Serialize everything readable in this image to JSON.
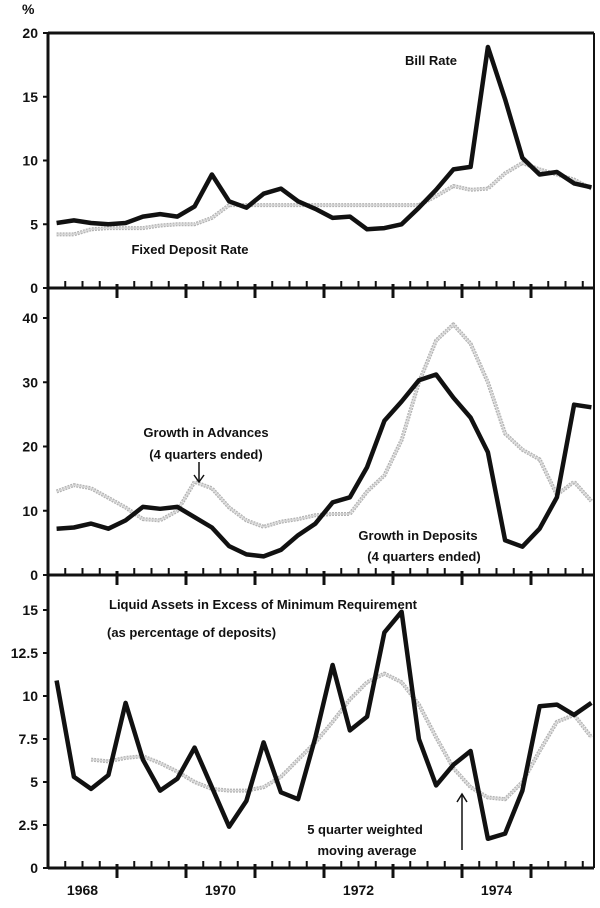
{
  "chart_data": [
    {
      "type": "line",
      "title": "",
      "ylabel": "%",
      "ylim": [
        0,
        20
      ],
      "yticks": [
        "0",
        "5",
        "10",
        "15",
        "20"
      ],
      "ytick_values": [
        0,
        5,
        10,
        15,
        20
      ],
      "x_start": 1968.125,
      "x_step": 0.25,
      "annotations": {
        "bill": "Bill Rate",
        "fixed": "Fixed Deposit Rate"
      },
      "series": [
        {
          "name": "Bill Rate",
          "style": "black",
          "values": [
            5.1,
            5.3,
            5.1,
            5.0,
            5.1,
            5.6,
            5.8,
            5.6,
            6.4,
            8.9,
            6.8,
            6.3,
            7.4,
            7.8,
            6.8,
            6.2,
            5.5,
            5.6,
            4.6,
            4.7,
            5.0,
            6.3,
            7.7,
            9.3,
            9.5,
            18.9,
            14.8,
            10.2,
            8.9,
            9.1,
            8.2,
            7.9
          ]
        },
        {
          "name": "Fixed Deposit Rate",
          "style": "grey",
          "values": [
            4.2,
            4.2,
            4.6,
            4.7,
            4.7,
            4.7,
            4.9,
            5.0,
            5.0,
            5.5,
            6.5,
            6.5,
            6.5,
            6.5,
            6.5,
            6.5,
            6.5,
            6.5,
            6.5,
            6.5,
            6.5,
            6.5,
            7.2,
            8.0,
            7.7,
            7.8,
            9.0,
            9.8,
            9.3,
            8.9,
            8.5,
            7.8
          ]
        }
      ]
    },
    {
      "type": "line",
      "ylim": [
        0,
        40
      ],
      "yticks": [
        "0",
        "10",
        "20",
        "30",
        "40"
      ],
      "ytick_values": [
        0,
        10,
        20,
        30,
        40
      ],
      "x_start": 1968.125,
      "x_step": 0.25,
      "annotations": {
        "adv1": "Growth in Advances",
        "adv2": "(4 quarters ended)",
        "dep1": "Growth in Deposits",
        "dep2": "(4 quarters ended)"
      },
      "series": [
        {
          "name": "Growth in Deposits (4 quarters ended)",
          "style": "black",
          "values": [
            7.2,
            7.4,
            8.0,
            7.2,
            8.5,
            10.6,
            10.3,
            10.6,
            9.0,
            7.4,
            4.5,
            3.2,
            2.9,
            3.9,
            6.2,
            8.0,
            11.3,
            12.1,
            16.8,
            24.0,
            27.0,
            30.3,
            31.2,
            27.6,
            24.5,
            19.1,
            5.4,
            4.4,
            7.2,
            12.1,
            26.5,
            26.1
          ]
        },
        {
          "name": "Growth in Advances (4 quarters ended)",
          "style": "grey",
          "values": [
            13.0,
            14.0,
            13.5,
            12.0,
            10.5,
            8.7,
            8.5,
            10.0,
            14.5,
            13.5,
            10.5,
            8.5,
            7.5,
            8.3,
            8.7,
            9.3,
            9.5,
            9.5,
            13.0,
            15.5,
            21.0,
            30.0,
            36.5,
            39.0,
            36.0,
            30.0,
            22.0,
            19.5,
            18.0,
            12.5,
            14.5,
            11.5
          ]
        }
      ]
    },
    {
      "type": "line",
      "ylim": [
        0,
        15
      ],
      "yticks": [
        "0",
        "2.5",
        "5",
        "7.5",
        "10",
        "12.5",
        "15"
      ],
      "ytick_values": [
        0,
        2.5,
        5,
        7.5,
        10,
        12.5,
        15
      ],
      "x_start": 1968.125,
      "x_step": 0.25,
      "xticks": [
        "1968",
        "1970",
        "1972",
        "1974"
      ],
      "xtick_values": [
        1968,
        1970,
        1972,
        1974
      ],
      "xlim": [
        1968,
        1975.9
      ],
      "annotations": {
        "title1": "Liquid Assets in Excess of Minimum Requirement",
        "title2": "(as percentage of deposits)",
        "ma1": "5 quarter weighted",
        "ma2": "moving average"
      },
      "series": [
        {
          "name": "Liquid Assets in Excess of Minimum Requirement",
          "style": "black",
          "values": [
            10.9,
            5.3,
            4.6,
            5.4,
            9.6,
            6.3,
            4.5,
            5.2,
            7.0,
            4.7,
            2.4,
            3.9,
            7.3,
            4.4,
            4.0,
            7.6,
            11.8,
            8.0,
            8.8,
            13.7,
            14.9,
            7.5,
            4.8,
            6.0,
            6.8,
            1.7,
            2.0,
            4.5,
            9.4,
            9.5,
            8.9,
            9.6
          ]
        },
        {
          "name": "5 quarter weighted moving average",
          "style": "grey",
          "values": [
            null,
            null,
            6.3,
            6.2,
            6.4,
            6.5,
            6.1,
            5.6,
            5.0,
            4.6,
            4.5,
            4.5,
            4.7,
            5.3,
            6.3,
            7.3,
            8.5,
            9.8,
            10.8,
            11.3,
            10.8,
            9.5,
            7.6,
            5.8,
            4.7,
            4.1,
            4.0,
            5.0,
            6.8,
            8.5,
            8.9,
            7.6
          ]
        }
      ]
    }
  ],
  "colors": {
    "black": "#111111",
    "grey": "#b3b3b3"
  }
}
